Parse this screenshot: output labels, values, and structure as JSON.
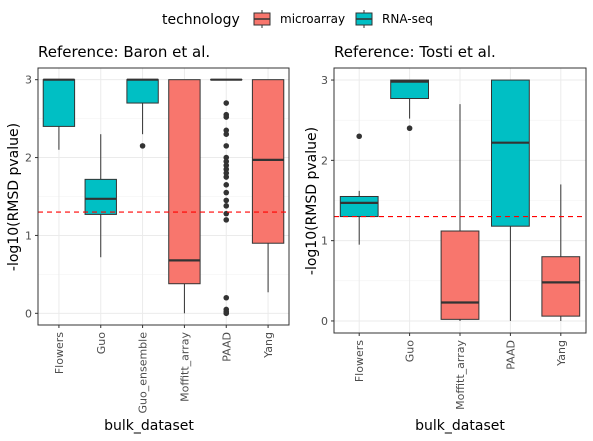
{
  "chart_data": {
    "type": "boxplot",
    "legend": {
      "title": "technology",
      "position": "top",
      "entries": [
        {
          "label": "microarray",
          "color": "#F8766D"
        },
        {
          "label": "RNA-seq",
          "color": "#00BFC4"
        }
      ]
    },
    "grid": true,
    "reference_line": {
      "y": 1.3,
      "color": "#ff0000",
      "style": "dashed"
    },
    "panels": [
      {
        "title": "Reference: Baron et al.",
        "xlabel": "bulk_dataset",
        "ylabel": "-log10(RMSD pvalue)",
        "ylim": [
          -0.15,
          3.15
        ],
        "yticks": [
          0,
          1,
          2,
          3
        ],
        "categories": [
          "Flowers",
          "Guo",
          "Guo_ensemble",
          "Moffitt_array",
          "PAAD",
          "Yang"
        ],
        "boxes": [
          {
            "category": "Flowers",
            "technology": "RNA-seq",
            "min": 2.1,
            "q1": 2.4,
            "median": 3.0,
            "q3": 3.0,
            "max": 3.0,
            "outliers": []
          },
          {
            "category": "Guo",
            "technology": "RNA-seq",
            "min": 0.72,
            "q1": 1.27,
            "median": 1.47,
            "q3": 1.72,
            "max": 2.3,
            "outliers": []
          },
          {
            "category": "Guo_ensemble",
            "technology": "RNA-seq",
            "min": 2.3,
            "q1": 2.7,
            "median": 3.0,
            "q3": 3.0,
            "max": 3.0,
            "outliers": [
              2.15
            ]
          },
          {
            "category": "Moffitt_array",
            "technology": "microarray",
            "min": 0.0,
            "q1": 0.38,
            "median": 0.68,
            "q3": 3.0,
            "max": 3.0,
            "outliers": []
          },
          {
            "category": "PAAD",
            "technology": "microarray",
            "min": 3.0,
            "q1": 3.0,
            "median": 3.0,
            "q3": 3.0,
            "max": 3.0,
            "outliers": [
              2.7,
              2.55,
              2.52,
              2.35,
              2.3,
              2.15,
              2.0,
              1.95,
              1.9,
              1.85,
              1.8,
              1.75,
              1.65,
              1.55,
              1.45,
              1.38,
              1.28,
              1.2,
              0.2,
              0.05,
              0.02,
              0.0
            ]
          },
          {
            "category": "Yang",
            "technology": "microarray",
            "min": 0.27,
            "q1": 0.9,
            "median": 1.97,
            "q3": 3.0,
            "max": 3.0,
            "outliers": []
          }
        ]
      },
      {
        "title": "Reference: Tosti et al.",
        "xlabel": "bulk_dataset",
        "ylabel": "-log10(RMSD pvalue)",
        "ylim": [
          -0.15,
          3.15
        ],
        "yticks": [
          0,
          1,
          2,
          3
        ],
        "categories": [
          "Flowers",
          "Guo",
          "Moffitt_array",
          "PAAD",
          "Yang"
        ],
        "boxes": [
          {
            "category": "Flowers",
            "technology": "RNA-seq",
            "min": 0.95,
            "q1": 1.3,
            "median": 1.47,
            "q3": 1.55,
            "max": 1.62,
            "outliers": [
              2.3
            ]
          },
          {
            "category": "Guo",
            "technology": "RNA-seq",
            "min": 2.52,
            "q1": 2.77,
            "median": 2.98,
            "q3": 3.0,
            "max": 3.0,
            "outliers": [
              2.4
            ]
          },
          {
            "category": "Moffitt_array",
            "technology": "microarray",
            "min": 0.0,
            "q1": 0.02,
            "median": 0.23,
            "q3": 1.12,
            "max": 2.7,
            "outliers": []
          },
          {
            "category": "PAAD",
            "technology": "RNA-seq",
            "min": 0.0,
            "q1": 1.18,
            "median": 2.22,
            "q3": 3.0,
            "max": 3.0,
            "outliers": []
          },
          {
            "category": "Yang",
            "technology": "microarray",
            "min": 0.0,
            "q1": 0.06,
            "median": 0.48,
            "q3": 0.8,
            "max": 1.7,
            "outliers": []
          }
        ]
      }
    ]
  }
}
